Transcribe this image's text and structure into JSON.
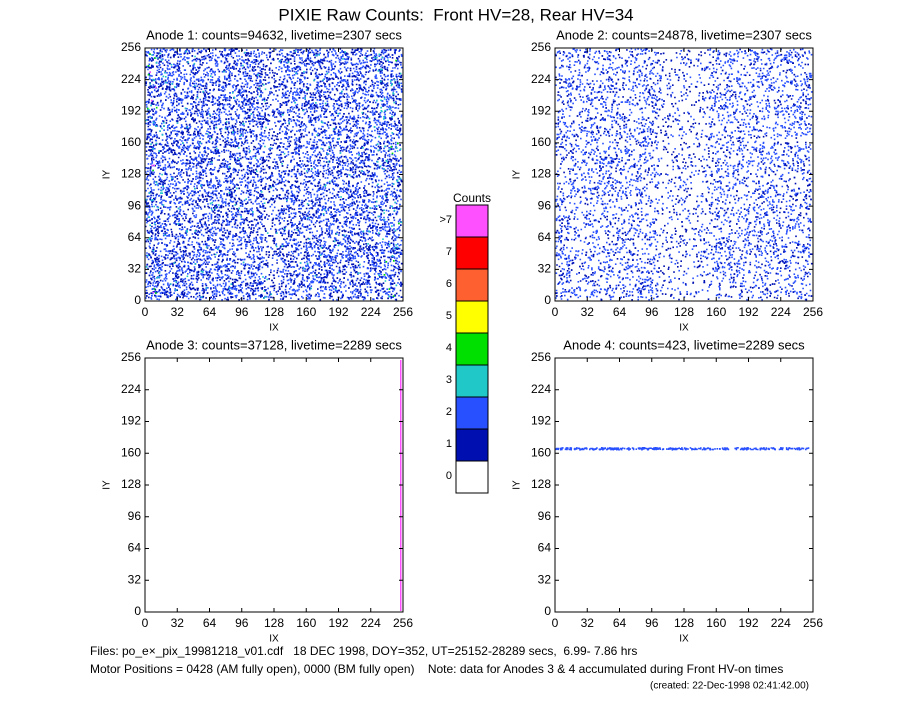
{
  "title": "PIXIE Raw Counts:  Front HV=28, Rear HV=34",
  "chart_data": [
    {
      "type": "heatmap",
      "title": "Anode 1: counts=94632, livetime=2307 secs",
      "xlabel": "IX",
      "ylabel": "IY",
      "xlim": [
        0,
        256
      ],
      "ylim": [
        0,
        256
      ],
      "xticks": [
        0,
        32,
        64,
        96,
        128,
        160,
        192,
        224,
        256
      ],
      "yticks": [
        0,
        32,
        64,
        96,
        128,
        160,
        192,
        224,
        256
      ]
    },
    {
      "type": "heatmap",
      "title": "Anode 2: counts=24878, livetime=2307 secs",
      "xlabel": "IX",
      "ylabel": "IY",
      "xlim": [
        0,
        256
      ],
      "ylim": [
        0,
        256
      ],
      "xticks": [
        0,
        32,
        64,
        96,
        128,
        160,
        192,
        224,
        256
      ],
      "yticks": [
        0,
        32,
        64,
        96,
        128,
        160,
        192,
        224,
        256
      ]
    },
    {
      "type": "heatmap",
      "title": "Anode 3: counts=37128, livetime=2289 secs",
      "xlabel": "IX",
      "ylabel": "IY",
      "xlim": [
        0,
        256
      ],
      "ylim": [
        0,
        256
      ],
      "xticks": [
        0,
        32,
        64,
        96,
        128,
        160,
        192,
        224,
        256
      ],
      "yticks": [
        0,
        32,
        64,
        96,
        128,
        160,
        192,
        224,
        256
      ]
    },
    {
      "type": "heatmap",
      "title": "Anode 4: counts=423, livetime=2289 secs",
      "xlabel": "IX",
      "ylabel": "IY",
      "xlim": [
        0,
        256
      ],
      "ylim": [
        0,
        256
      ],
      "xticks": [
        0,
        32,
        64,
        96,
        128,
        160,
        192,
        224,
        256
      ],
      "yticks": [
        0,
        32,
        64,
        96,
        128,
        160,
        192,
        224,
        256
      ]
    }
  ],
  "colorbar": {
    "title": "Counts",
    "labels": [
      "0",
      "1",
      "2",
      "3",
      "4",
      "5",
      "6",
      "7",
      ">7"
    ],
    "colors": [
      "#ffffff",
      "#0010b0",
      "#2850ff",
      "#20c8c8",
      "#00e000",
      "#ffff00",
      "#ff6030",
      "#ff0000",
      "#ff50ff"
    ]
  },
  "footer": [
    "Files: po_e×_pix_19981218_v01.cdf   18 DEC 1998, DOY=352, UT=25152-28289 secs,  6.99- 7.86 hrs",
    "Motor Positions = 0428 (AM fully open), 0000 (BM fully open)    Note: data for Anodes 3 & 4 accumulated during Front HV-on times"
  ],
  "created": "(created: 22-Dec-1998 02:41:42.00)"
}
